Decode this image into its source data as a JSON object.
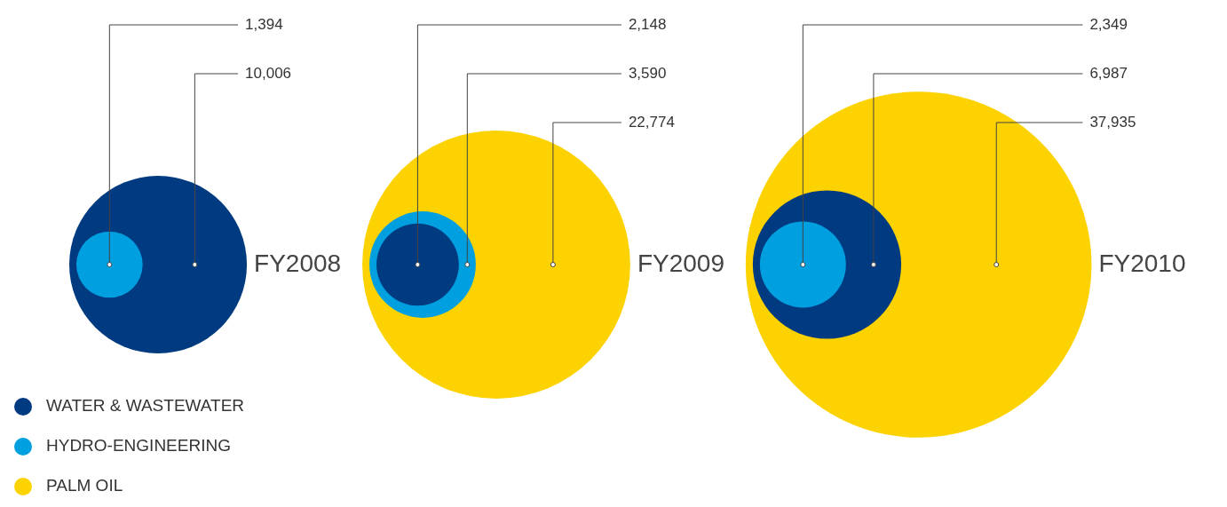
{
  "chart_data": {
    "type": "other",
    "categories": [
      "FY2008",
      "FY2009",
      "FY2010"
    ],
    "series": [
      {
        "name": "WATER & WASTEWATER",
        "color": "#003a80",
        "values": [
          10006,
          2148,
          6987
        ],
        "value_labels": [
          "10,006",
          "2,148",
          "6,987"
        ]
      },
      {
        "name": "HYDRO-ENGINEERING",
        "color": "#009fe0",
        "values": [
          1394,
          3590,
          2349
        ],
        "value_labels": [
          "1,394",
          "3,590",
          "2,349"
        ]
      },
      {
        "name": "PALM OIL",
        "color": "#fcd200",
        "values": [
          null,
          22774,
          37935
        ],
        "value_labels": [
          null,
          "22,774",
          "37,935"
        ]
      }
    ],
    "legend": "bottom left"
  }
}
